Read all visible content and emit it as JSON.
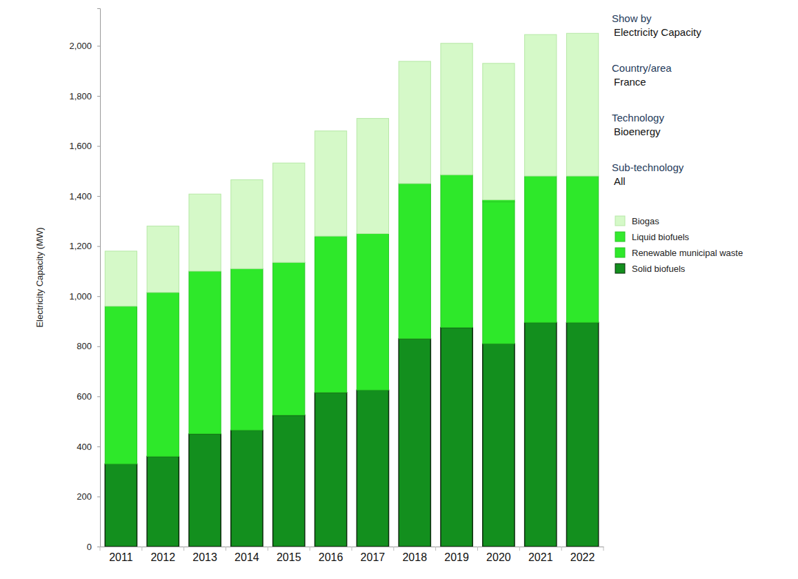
{
  "chart_data": {
    "type": "bar",
    "stacked": true,
    "legend": "right",
    "grid": false,
    "y_label": "Electricity Capacity (MW)",
    "annotations": [
      {
        "heading": "Show by",
        "text": "Electricity Capacity"
      },
      {
        "heading": "Country/area",
        "text": "France"
      },
      {
        "heading": "Technology",
        "text": "Bioenergy"
      },
      {
        "heading": "Sub-technology",
        "text": "All"
      }
    ],
    "categories": [
      "2011",
      "2012",
      "2013",
      "2014",
      "2015",
      "2016",
      "2017",
      "2018",
      "2019",
      "2020",
      "2021",
      "2022"
    ],
    "series": [
      {
        "name": "Solid biofuels",
        "color": "#138f1e",
        "values": [
          330,
          360,
          450,
          465,
          525,
          615,
          625,
          830,
          875,
          810,
          895,
          895
        ]
      },
      {
        "name": "Renewable municipal waste",
        "color": "#2ee82a",
        "values": [
          630,
          655,
          650,
          645,
          610,
          625,
          625,
          620,
          610,
          567,
          585,
          585
        ]
      },
      {
        "name": "Liquid biofuels",
        "color": "#34ea2e",
        "values": [
          0,
          0,
          0,
          0,
          0,
          0,
          0,
          0,
          0,
          8,
          0,
          0
        ]
      },
      {
        "name": "Biogas",
        "color": "#d5f9c8",
        "values": [
          220,
          265,
          308,
          355,
          397,
          420,
          460,
          488,
          525,
          545,
          565,
          570
        ]
      }
    ],
    "ylim": [
      0,
      2150
    ],
    "yticks": [
      0,
      200,
      400,
      600,
      800,
      {
        "value": 1000,
        "label": "1,000"
      },
      {
        "value": 1200,
        "label": "1,200"
      },
      {
        "value": 1400,
        "label": "1,400"
      },
      {
        "value": 1600,
        "label": "1,600"
      },
      {
        "value": 1800,
        "label": "1,800"
      },
      {
        "value": 2000,
        "label": "2,000"
      }
    ]
  }
}
